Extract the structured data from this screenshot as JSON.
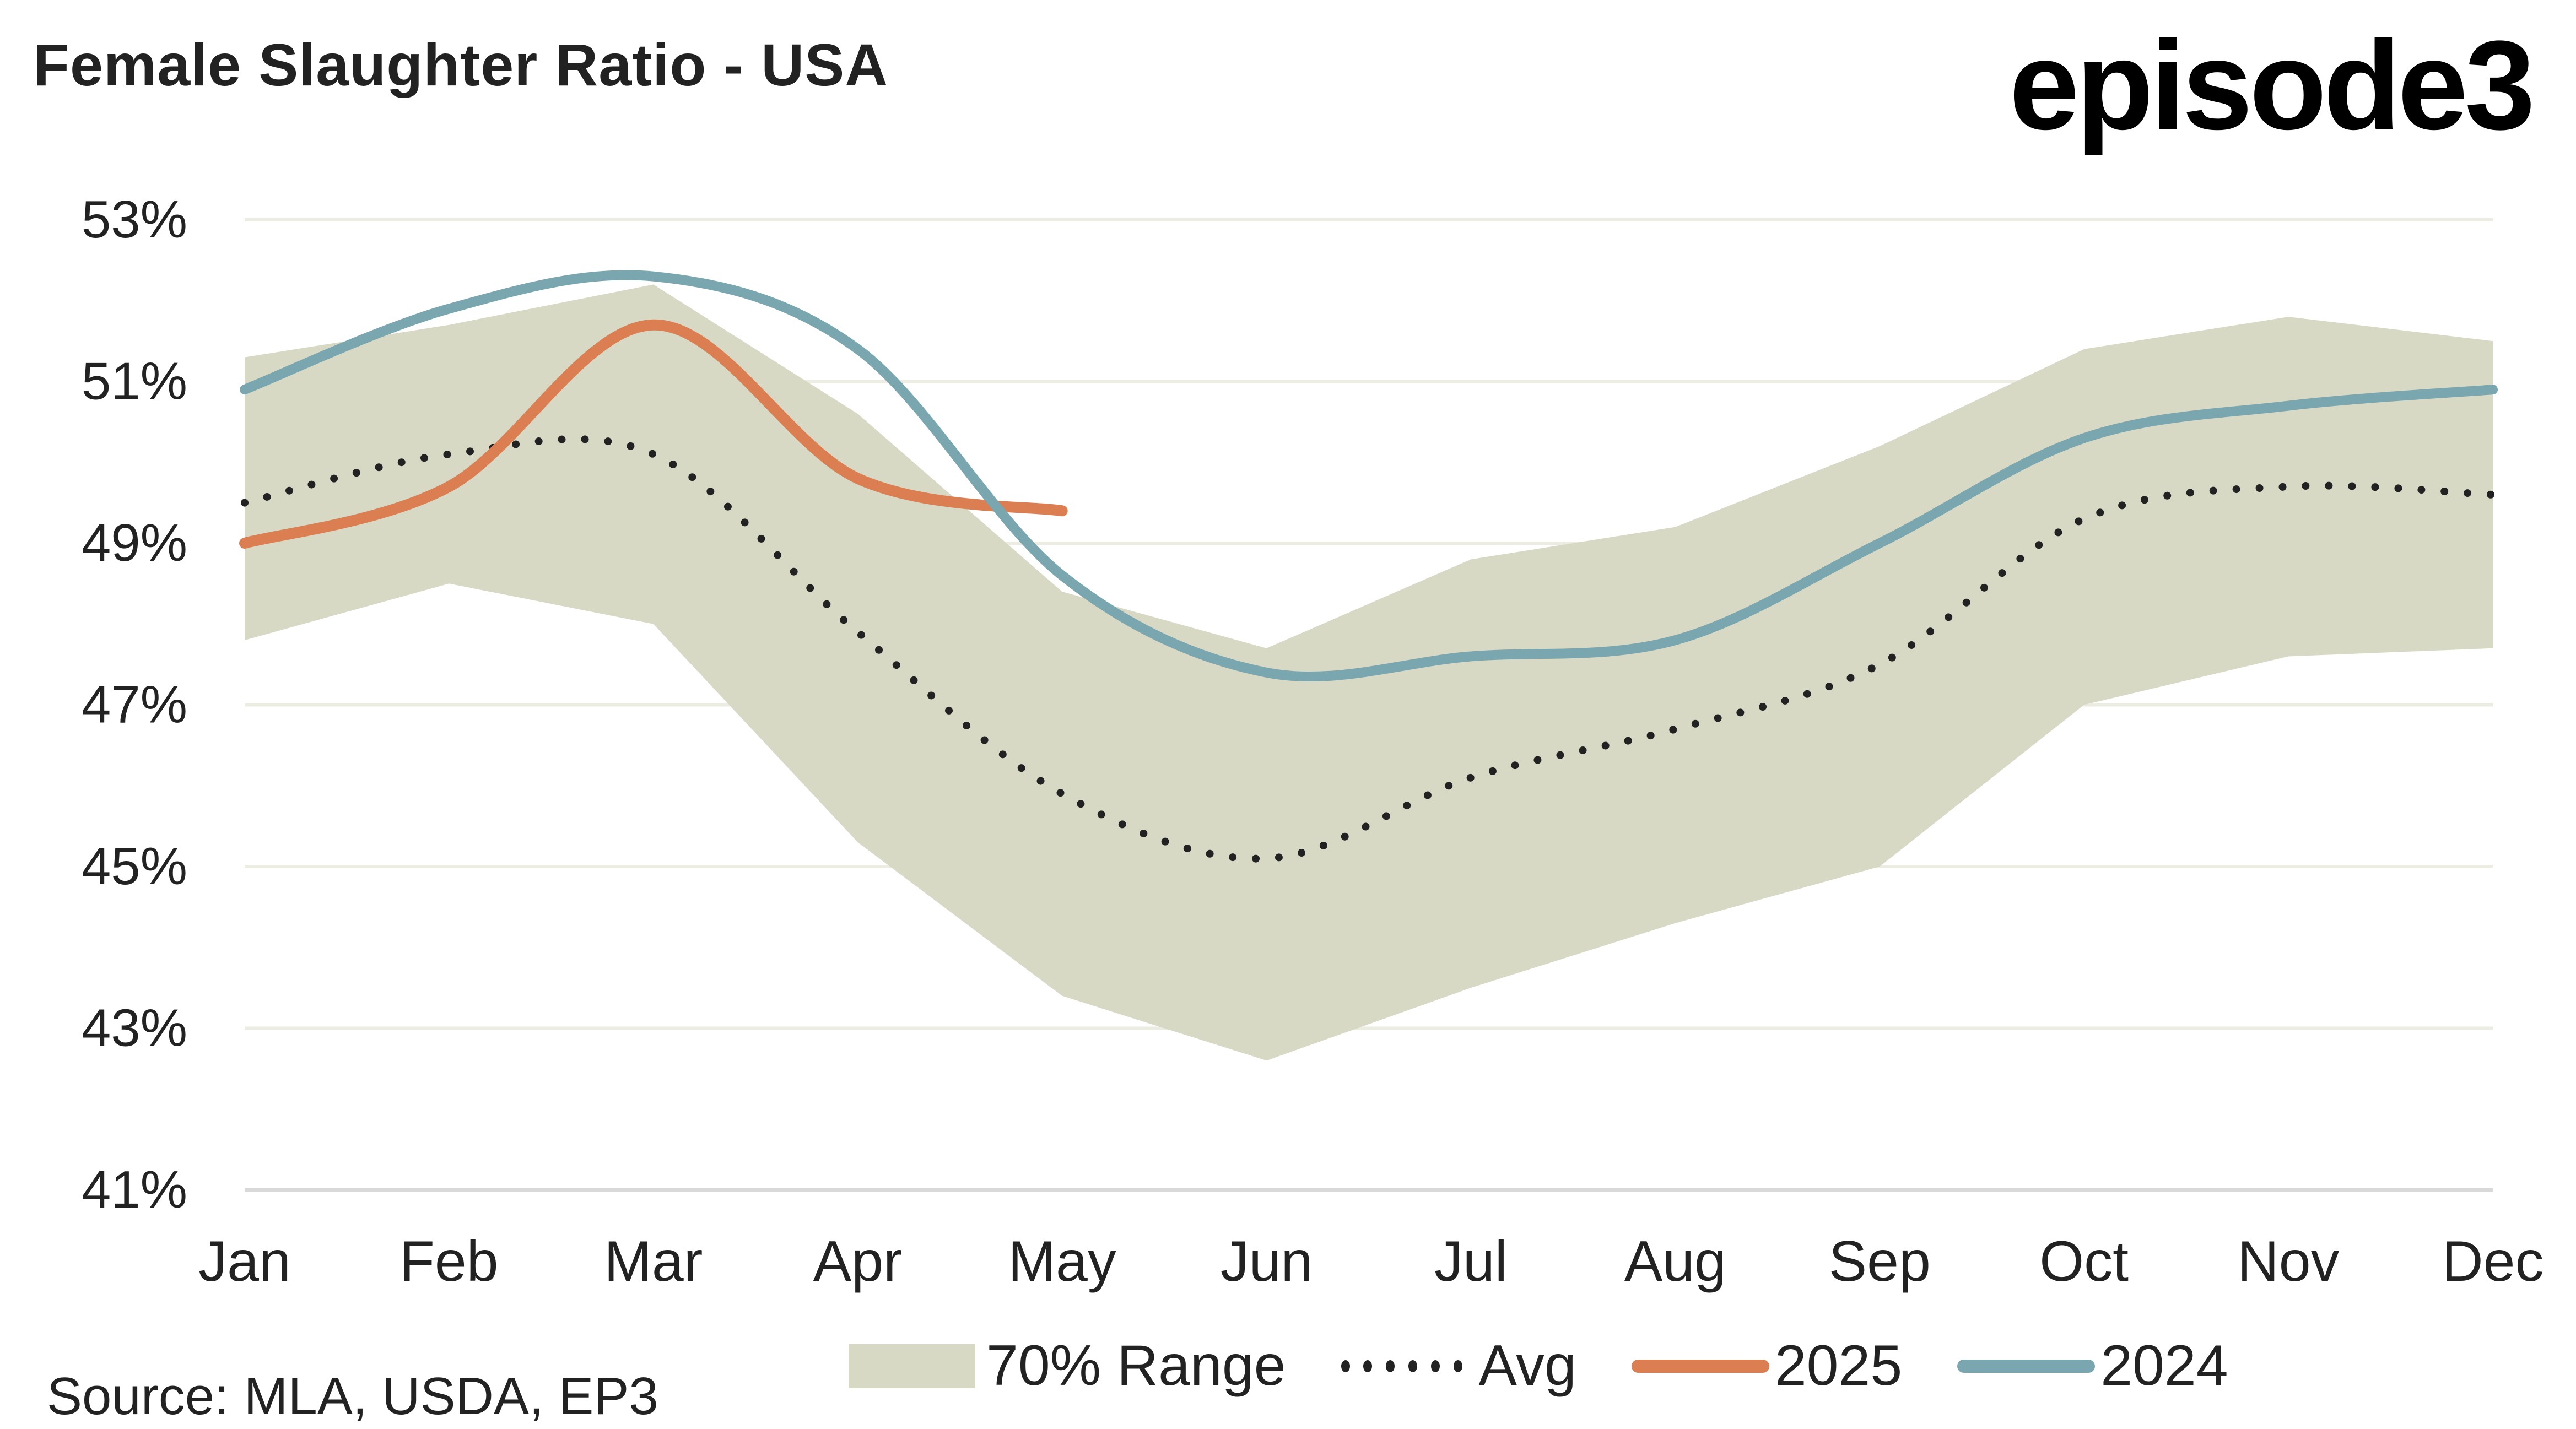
{
  "header": {
    "title": "Female Slaughter Ratio - USA",
    "logo_text": "episode3"
  },
  "source": "Source: MLA, USDA, EP3",
  "colors": {
    "range": "#d8d9c5",
    "avg": "#222222",
    "s2025": "#db7e51",
    "s2024": "#7aa6b0",
    "grid": "#ecece2"
  },
  "chart_data": {
    "type": "line",
    "title": "Female Slaughter Ratio - USA",
    "xlabel": "",
    "ylabel": "",
    "categories": [
      "Jan",
      "Feb",
      "Mar",
      "Apr",
      "May",
      "Jun",
      "Jul",
      "Aug",
      "Sep",
      "Oct",
      "Nov",
      "Dec"
    ],
    "ylim": [
      41,
      53
    ],
    "yticks": [
      41,
      43,
      45,
      47,
      49,
      51,
      53
    ],
    "ytick_labels": [
      "41%",
      "43%",
      "45%",
      "47%",
      "49%",
      "51%",
      "53%"
    ],
    "grid": true,
    "legend_position": "bottom",
    "range_band": {
      "name": "70% Range",
      "low": [
        47.8,
        48.5,
        48.0,
        45.3,
        43.4,
        42.6,
        43.5,
        44.3,
        45.0,
        47.0,
        47.6,
        47.7
      ],
      "high": [
        51.3,
        51.7,
        52.2,
        50.6,
        48.4,
        47.7,
        48.8,
        49.2,
        50.2,
        51.4,
        51.8,
        51.5
      ]
    },
    "series": [
      {
        "name": "Avg",
        "style": "dotted",
        "values": [
          49.5,
          50.1,
          50.1,
          47.9,
          45.9,
          45.1,
          46.1,
          46.7,
          47.5,
          49.3,
          49.7,
          49.6
        ]
      },
      {
        "name": "2025",
        "style": "solid",
        "values": [
          49.0,
          49.7,
          51.7,
          49.8,
          49.4,
          null,
          null,
          null,
          null,
          null,
          null,
          null
        ]
      },
      {
        "name": "2024",
        "style": "solid",
        "values": [
          50.9,
          51.9,
          52.3,
          51.4,
          48.6,
          47.4,
          47.6,
          47.8,
          49.0,
          50.3,
          50.7,
          50.9
        ]
      }
    ]
  },
  "legend": [
    {
      "label": "70% Range",
      "kind": "band"
    },
    {
      "label": "Avg",
      "kind": "dots"
    },
    {
      "label": "2025",
      "kind": "line2025"
    },
    {
      "label": "2024",
      "kind": "line2024"
    }
  ]
}
